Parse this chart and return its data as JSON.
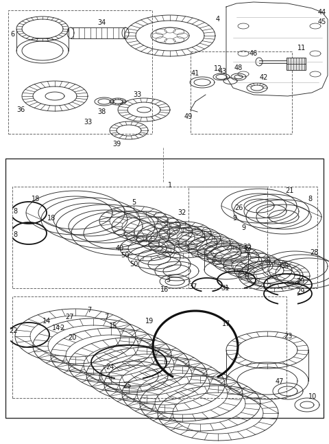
{
  "bg_color": "#ffffff",
  "line_color": "#2a2a2a",
  "fig_width": 4.8,
  "fig_height": 6.47,
  "dpi": 100,
  "lw": 0.65,
  "lw_bold": 1.8,
  "lw_snap": 1.3,
  "fs": 7.0
}
